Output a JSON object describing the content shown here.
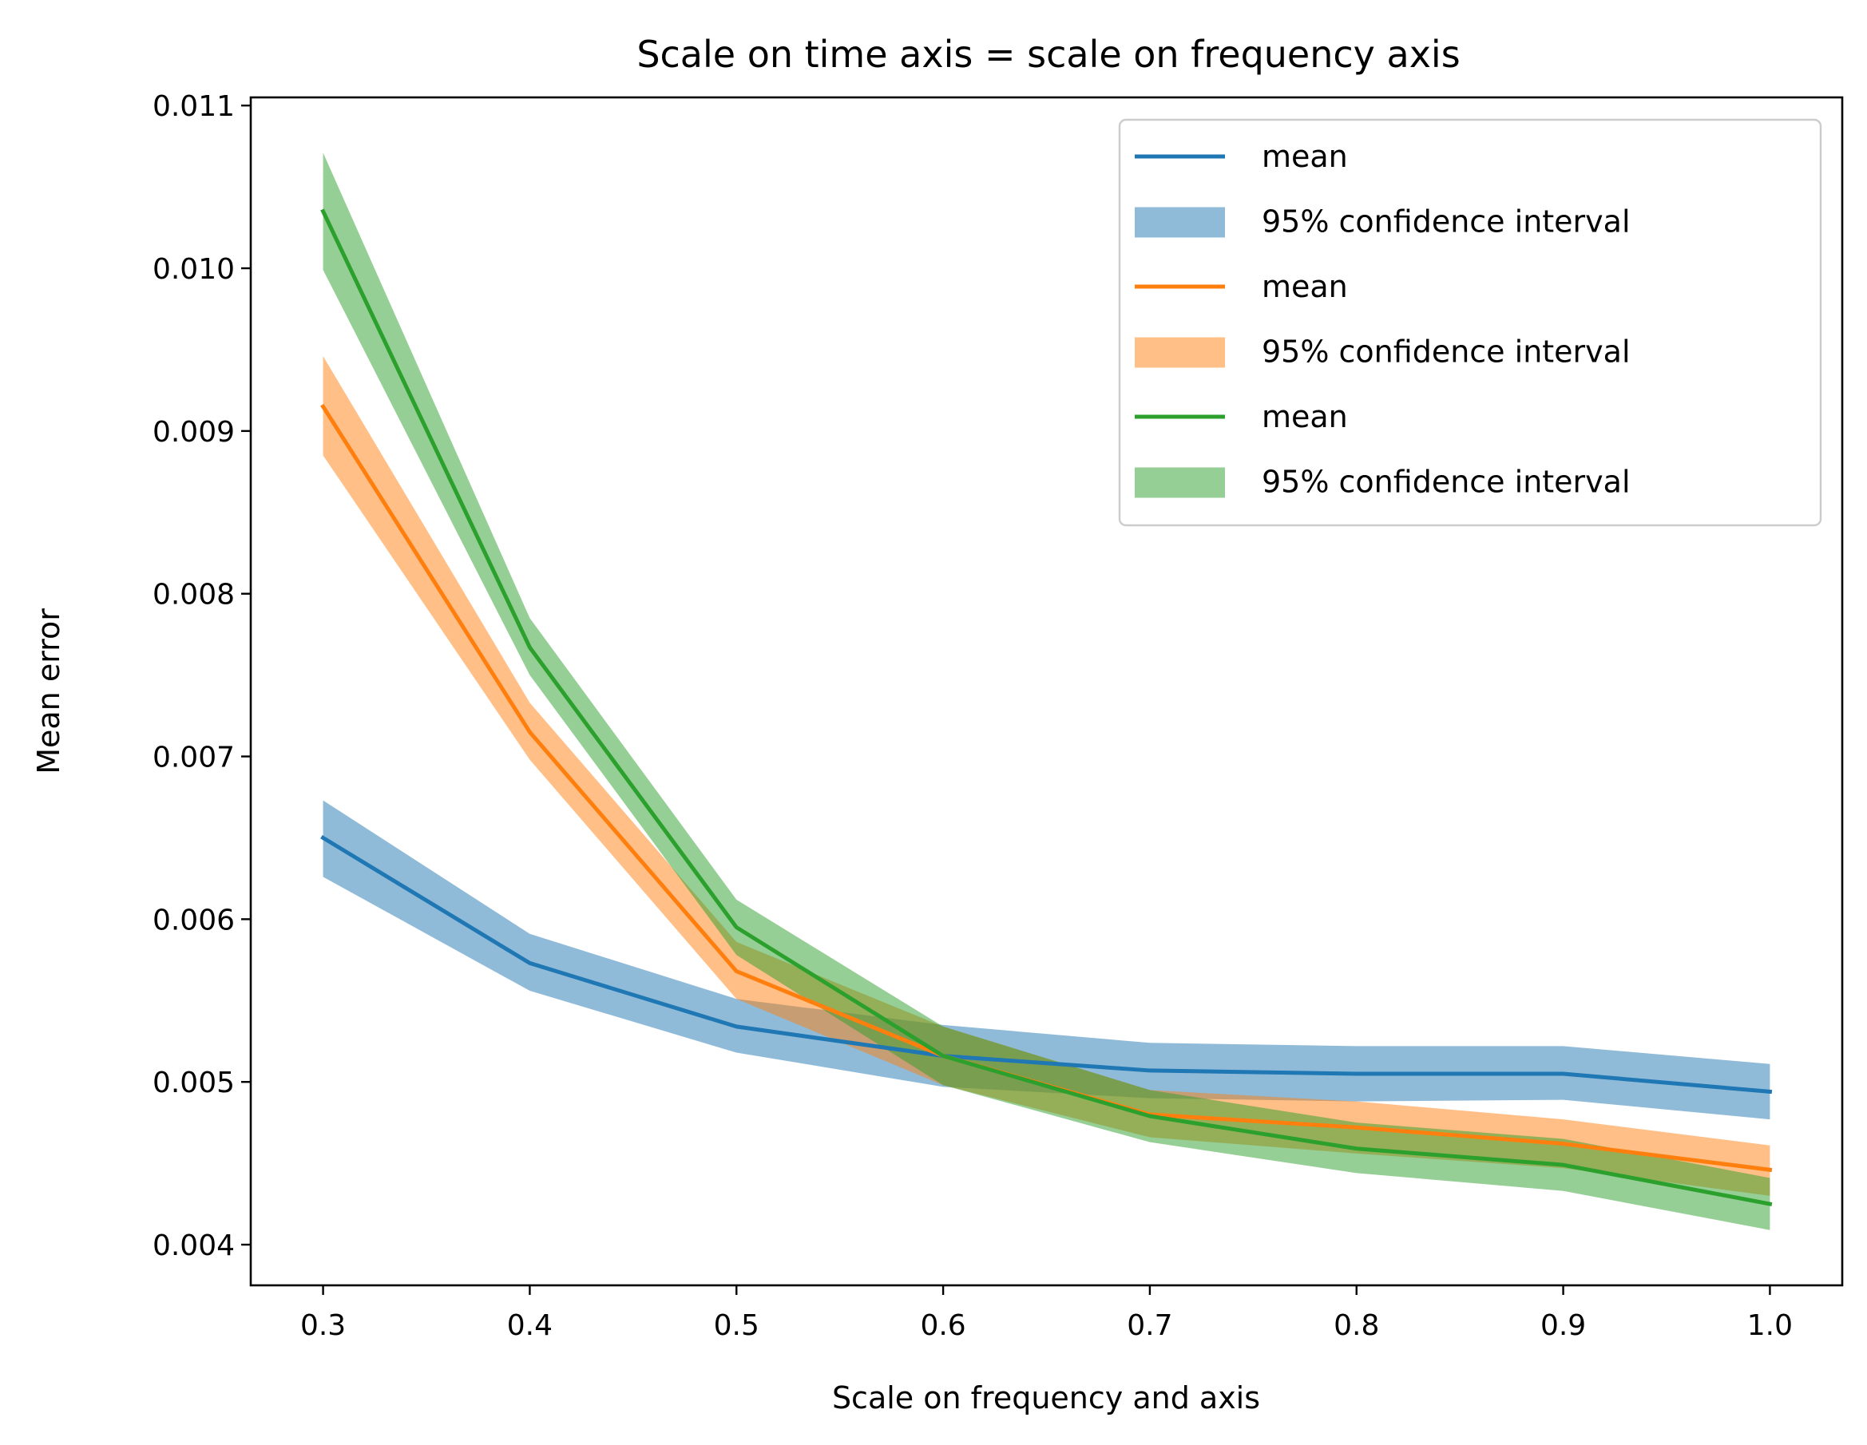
{
  "chart_data": {
    "type": "line",
    "title": "Scale on time axis = scale on frequency axis",
    "xlabel": "Scale on frequency and axis",
    "ylabel": "Mean error",
    "xlim": [
      0.265,
      1.035
    ],
    "ylim": [
      0.00375,
      0.01105
    ],
    "x": [
      0.3,
      0.4,
      0.5,
      0.6,
      0.7,
      0.8,
      0.9,
      1.0
    ],
    "xticks": [
      0.3,
      0.4,
      0.5,
      0.6,
      0.7,
      0.8,
      0.9,
      1.0
    ],
    "xtick_labels": [
      "0.3",
      "0.4",
      "0.5",
      "0.6",
      "0.7",
      "0.8",
      "0.9",
      "1.0"
    ],
    "yticks": [
      0.004,
      0.005,
      0.006,
      0.007,
      0.008,
      0.009,
      0.01,
      0.011
    ],
    "ytick_labels": [
      "0.004",
      "0.005",
      "0.006",
      "0.007",
      "0.008",
      "0.009",
      "0.010",
      "0.011"
    ],
    "grid": false,
    "legend_position": "top-right",
    "series": [
      {
        "name": "mean",
        "band_name": "95% confidence interval",
        "color": "#1f77b4",
        "values": [
          0.0065,
          0.00573,
          0.00534,
          0.00516,
          0.00507,
          0.00505,
          0.00505,
          0.00494
        ],
        "lower": [
          0.00626,
          0.00556,
          0.00518,
          0.00497,
          0.0049,
          0.00488,
          0.00489,
          0.00477
        ],
        "upper": [
          0.00673,
          0.00591,
          0.00551,
          0.00535,
          0.00524,
          0.00522,
          0.00522,
          0.00511
        ]
      },
      {
        "name": "mean",
        "band_name": "95% confidence interval",
        "color": "#ff7f0e",
        "values": [
          0.00915,
          0.00715,
          0.00568,
          0.00516,
          0.0048,
          0.00472,
          0.00462,
          0.00446
        ],
        "lower": [
          0.00885,
          0.00698,
          0.00551,
          0.00498,
          0.00466,
          0.00456,
          0.00447,
          0.0043
        ],
        "upper": [
          0.00946,
          0.00733,
          0.00586,
          0.00534,
          0.00495,
          0.00488,
          0.00477,
          0.00461
        ]
      },
      {
        "name": "mean",
        "band_name": "95% confidence interval",
        "color": "#2ca02c",
        "values": [
          0.01035,
          0.00767,
          0.00595,
          0.00516,
          0.00479,
          0.00459,
          0.00449,
          0.00425
        ],
        "lower": [
          0.00999,
          0.0075,
          0.00578,
          0.00498,
          0.00463,
          0.00444,
          0.00433,
          0.00409
        ],
        "upper": [
          0.01071,
          0.00785,
          0.00612,
          0.00534,
          0.00495,
          0.00475,
          0.00465,
          0.00441
        ]
      }
    ]
  }
}
